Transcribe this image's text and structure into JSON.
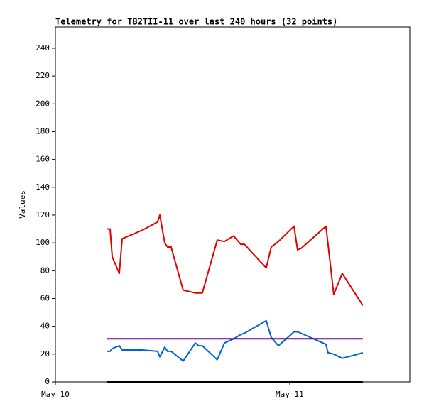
{
  "chart_data": {
    "type": "line",
    "title": "Telemetry for TB2TII-11 over last 240 hours (32 points)",
    "y_label": "Values",
    "x": [
      5.24,
      5.6,
      5.82,
      6.55,
      6.84,
      8.87,
      10.47,
      10.69,
      11.2,
      11.49,
      11.85,
      13.09,
      14.33,
      14.69,
      15.05,
      16.58,
      17.31,
      18.25,
      18.98,
      19.35,
      21.6,
      22.11,
      22.84,
      24.44,
      24.8,
      25.16,
      27.71,
      27.93,
      28.51,
      29.38,
      30.47,
      31.49
    ],
    "series": [
      {
        "color": "#e00000",
        "values": [
          110,
          110,
          90,
          78,
          103,
          109,
          115,
          120,
          100,
          97,
          97,
          66,
          64,
          64,
          64,
          102,
          101,
          105,
          99,
          99,
          82,
          97,
          101,
          112,
          95,
          96,
          112,
          99,
          63,
          78,
          66,
          55
        ]
      },
      {
        "color": "#0066cc",
        "values": [
          22,
          22,
          24,
          26,
          23,
          23,
          22,
          18,
          25,
          22,
          22,
          15,
          28,
          26,
          26,
          16,
          28,
          31,
          34,
          35,
          44,
          32,
          26,
          36,
          36,
          35,
          27,
          21,
          20,
          17,
          19,
          21
        ]
      },
      {
        "color": "#660099",
        "values": [
          31,
          31,
          31,
          31,
          31,
          31,
          31,
          31,
          31,
          31,
          31,
          31,
          31,
          31,
          31,
          31,
          31,
          31,
          31,
          31,
          31,
          31,
          31,
          31,
          31,
          31,
          31,
          31,
          31,
          31,
          31,
          31
        ]
      },
      {
        "color": "#000000",
        "values": [
          0,
          0,
          0,
          0,
          0,
          0,
          0,
          0,
          0,
          0,
          0,
          0,
          0,
          0,
          0,
          0,
          0,
          0,
          0,
          0,
          0,
          0,
          0,
          0,
          0,
          0,
          0,
          0,
          0,
          0,
          0,
          0
        ]
      }
    ],
    "xlim": [
      0,
      36.3
    ],
    "xticks": [
      {
        "value": 0,
        "label": "May 10"
      },
      {
        "value": 24,
        "label": "May 11"
      }
    ],
    "ylim": [
      0,
      255.3
    ],
    "yticks": [
      0,
      20,
      40,
      60,
      80,
      100,
      120,
      140,
      160,
      180,
      200,
      220,
      240
    ],
    "grid": false
  }
}
